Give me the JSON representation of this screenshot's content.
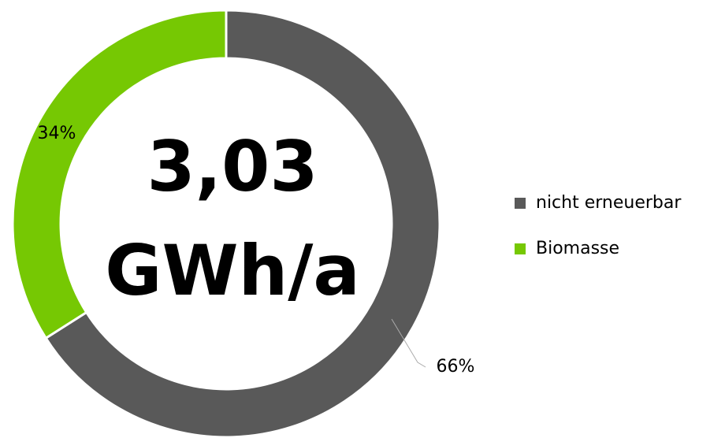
{
  "chart_data": {
    "type": "donut",
    "categories": [
      "nicht erneuerbar",
      "Biomasse"
    ],
    "values": [
      66,
      34
    ],
    "value_labels": [
      "66%",
      "34%"
    ],
    "colors": [
      "#595959",
      "#76c803"
    ],
    "center_text": [
      "3,03",
      "GWh/a"
    ],
    "legend": "right"
  }
}
